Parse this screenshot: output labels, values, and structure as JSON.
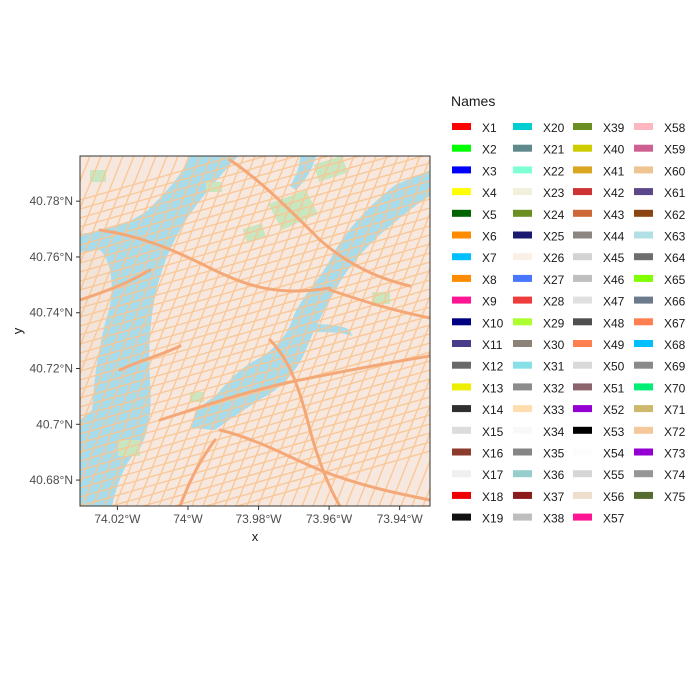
{
  "axes": {
    "xlabel": "x",
    "ylabel": "y",
    "x_ticks": [
      {
        "value": -74.02,
        "label": "74.02°W"
      },
      {
        "value": -74.0,
        "label": "74°W"
      },
      {
        "value": -73.98,
        "label": "73.98°W"
      },
      {
        "value": -73.96,
        "label": "73.96°W"
      },
      {
        "value": -73.94,
        "label": "73.94°W"
      }
    ],
    "y_ticks": [
      {
        "value": 40.78,
        "label": "40.78°N"
      },
      {
        "value": 40.76,
        "label": "40.76°N"
      },
      {
        "value": 40.74,
        "label": "40.74°N"
      },
      {
        "value": 40.72,
        "label": "40.72°N"
      },
      {
        "value": 40.7,
        "label": "40.70°N",
        "text": "40.7°N"
      },
      {
        "value": 40.68,
        "label": "40.68°N"
      }
    ],
    "xlim": [
      -74.0306,
      -73.9314
    ],
    "ylim": [
      40.6707,
      40.7962
    ]
  },
  "legend": {
    "title": "Names",
    "placement": "right",
    "items": [
      {
        "label": "X1",
        "color": "#ff0000"
      },
      {
        "label": "X2",
        "color": "#00ff00"
      },
      {
        "label": "X3",
        "color": "#0000ff"
      },
      {
        "label": "X4",
        "color": "#ffff00"
      },
      {
        "label": "X5",
        "color": "#006400"
      },
      {
        "label": "X6",
        "color": "#ff8c00"
      },
      {
        "label": "X7",
        "color": "#00bfff"
      },
      {
        "label": "X8",
        "color": "#ff8c00"
      },
      {
        "label": "X9",
        "color": "#ff1493"
      },
      {
        "label": "X10",
        "color": "#000080"
      },
      {
        "label": "X11",
        "color": "#483d8b"
      },
      {
        "label": "X12",
        "color": "#696969"
      },
      {
        "label": "X13",
        "color": "#eeee00"
      },
      {
        "label": "X14",
        "color": "#2f2f2f"
      },
      {
        "label": "X15",
        "color": "#dcdcdc"
      },
      {
        "label": "X16",
        "color": "#8b3a2b"
      },
      {
        "label": "X17",
        "color": "#f0f0f0"
      },
      {
        "label": "X18",
        "color": "#ee0000"
      },
      {
        "label": "X19",
        "color": "#111111"
      },
      {
        "label": "X20",
        "color": "#00ced1"
      },
      {
        "label": "X21",
        "color": "#5f8a8b"
      },
      {
        "label": "X22",
        "color": "#7fffd4"
      },
      {
        "label": "X23",
        "color": "#f0f0dc"
      },
      {
        "label": "X24",
        "color": "#6b8e23"
      },
      {
        "label": "X25",
        "color": "#191970"
      },
      {
        "label": "X26",
        "color": "#faf0e6"
      },
      {
        "label": "X27",
        "color": "#4876ff"
      },
      {
        "label": "X28",
        "color": "#ee3b3b"
      },
      {
        "label": "X29",
        "color": "#adff2f"
      },
      {
        "label": "X30",
        "color": "#8b8378"
      },
      {
        "label": "X31",
        "color": "#87e0e8"
      },
      {
        "label": "X32",
        "color": "#8c8c8c"
      },
      {
        "label": "X33",
        "color": "#ffdead"
      },
      {
        "label": "X34",
        "color": "#f8f8f8"
      },
      {
        "label": "X35",
        "color": "#858585"
      },
      {
        "label": "X36",
        "color": "#96cdcd"
      },
      {
        "label": "X37",
        "color": "#8b1a1a"
      },
      {
        "label": "X38",
        "color": "#bebebe"
      },
      {
        "label": "X39",
        "color": "#6b8e23"
      },
      {
        "label": "X40",
        "color": "#cdcd00"
      },
      {
        "label": "X41",
        "color": "#daa520"
      },
      {
        "label": "X42",
        "color": "#cd3333"
      },
      {
        "label": "X43",
        "color": "#cd6839"
      },
      {
        "label": "X44",
        "color": "#8b8682"
      },
      {
        "label": "X45",
        "color": "#d3d3d3"
      },
      {
        "label": "X46",
        "color": "#bfbfbf"
      },
      {
        "label": "X47",
        "color": "#e0e0e0"
      },
      {
        "label": "X48",
        "color": "#4f4f4f"
      },
      {
        "label": "X49",
        "color": "#ff7f50"
      },
      {
        "label": "X50",
        "color": "#d9d9d9"
      },
      {
        "label": "X51",
        "color": "#8b636c"
      },
      {
        "label": "X52",
        "color": "#9400d3"
      },
      {
        "label": "X53",
        "color": "#000000"
      },
      {
        "label": "X54",
        "color": "#fcfcfc"
      },
      {
        "label": "X55",
        "color": "#d6d6d6"
      },
      {
        "label": "X56",
        "color": "#eedfcc"
      },
      {
        "label": "X57",
        "color": "#ff1493"
      },
      {
        "label": "X58",
        "color": "#ffb6c1"
      },
      {
        "label": "X59",
        "color": "#cd6090"
      },
      {
        "label": "X60",
        "color": "#eec591"
      },
      {
        "label": "X61",
        "color": "#5d478b"
      },
      {
        "label": "X62",
        "color": "#8b4513"
      },
      {
        "label": "X63",
        "color": "#b0e0e6"
      },
      {
        "label": "X64",
        "color": "#6e6e6e"
      },
      {
        "label": "X65",
        "color": "#7fff00"
      },
      {
        "label": "X66",
        "color": "#6c7b8b"
      },
      {
        "label": "X67",
        "color": "#ff7f50"
      },
      {
        "label": "X68",
        "color": "#00bfff"
      },
      {
        "label": "X69",
        "color": "#8a8a8a"
      },
      {
        "label": "X70",
        "color": "#00ee76"
      },
      {
        "label": "X71",
        "color": "#cdb86b"
      },
      {
        "label": "X72",
        "color": "#f4c89a"
      },
      {
        "label": "X73",
        "color": "#9400d3"
      },
      {
        "label": "X74",
        "color": "#969696"
      },
      {
        "label": "X75",
        "color": "#556b2f"
      }
    ]
  },
  "map": {
    "land": "#f7e8df",
    "water": "#a9dceb",
    "park": "#c8e7c1",
    "road": "#fbc591",
    "major_road": "#f5a877"
  }
}
